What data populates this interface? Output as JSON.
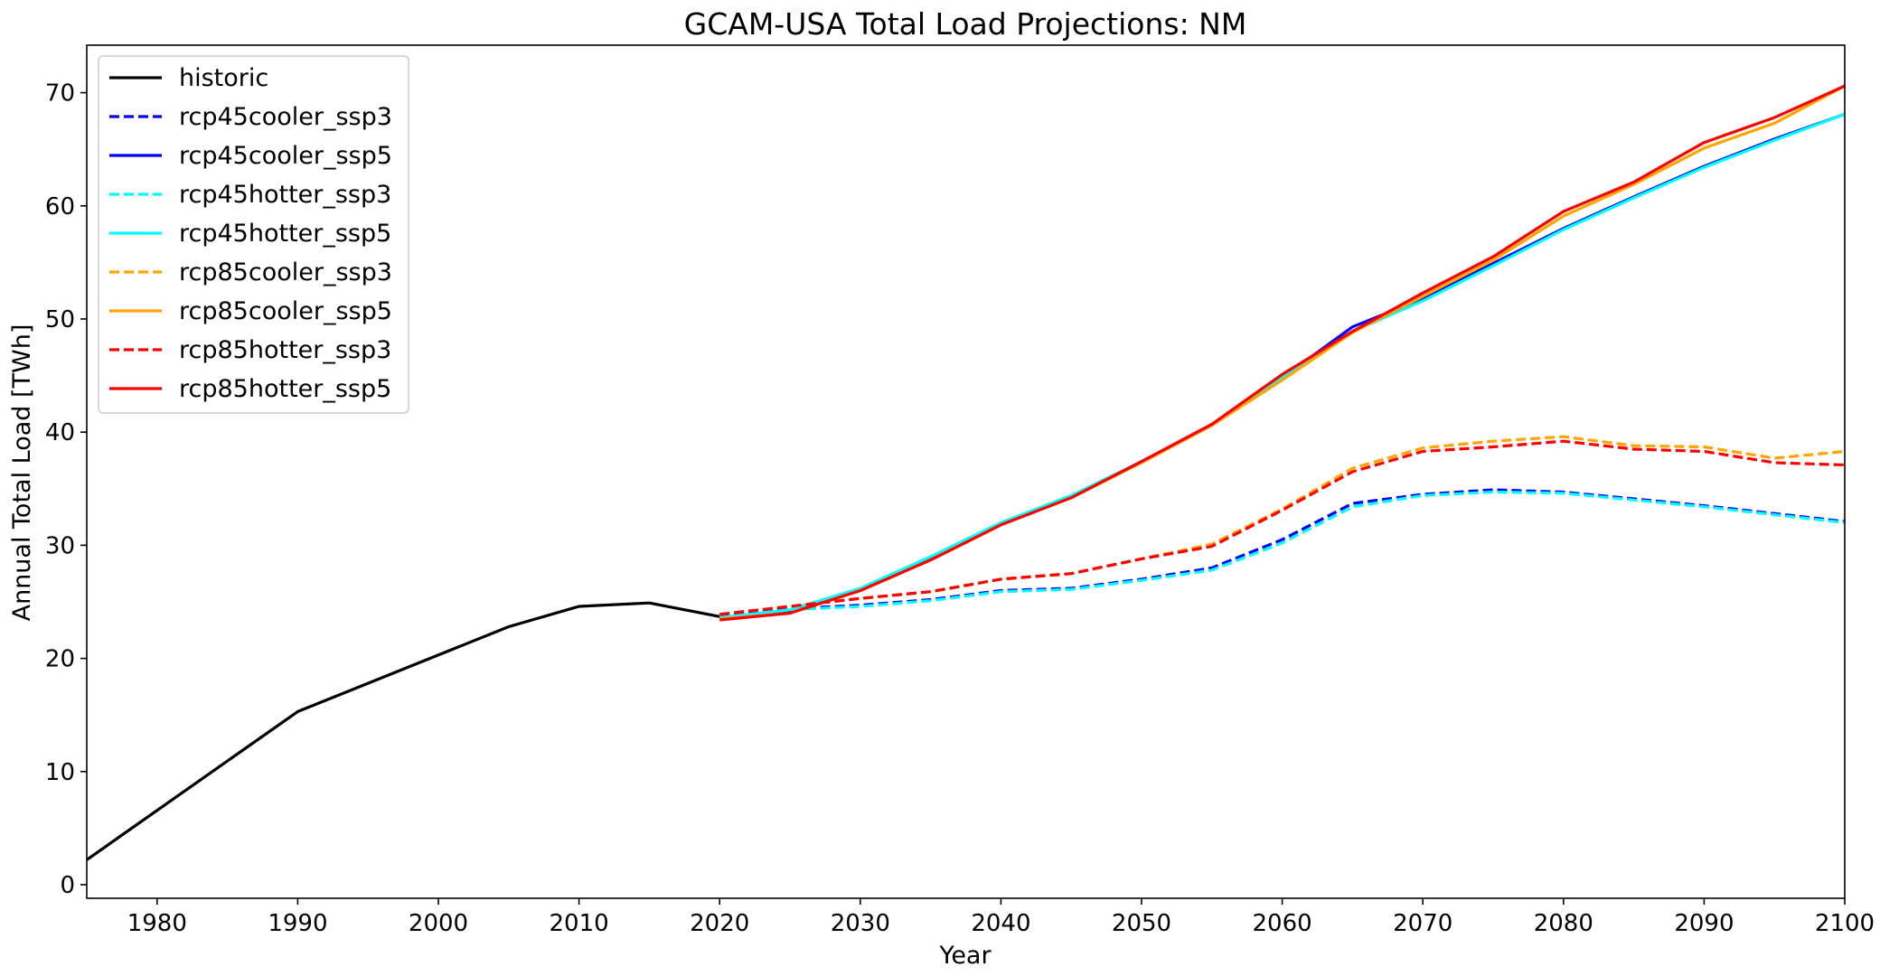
{
  "chart_data": {
    "type": "line",
    "title": "GCAM-USA Total Load Projections: NM",
    "xlabel": "Year",
    "ylabel": "Annual Total Load [TWh]",
    "xlim": [
      1975,
      2100
    ],
    "ylim": [
      -1.2,
      74.2
    ],
    "xticks": [
      1980,
      1990,
      2000,
      2010,
      2020,
      2030,
      2040,
      2050,
      2060,
      2070,
      2080,
      2090,
      2100
    ],
    "yticks": [
      0,
      10,
      20,
      30,
      40,
      50,
      60,
      70
    ],
    "grid": false,
    "legend_position": "upper-left",
    "series": [
      {
        "name": "historic",
        "color": "#000000",
        "dash": "solid",
        "x": [
          1975,
          1990,
          2005,
          2010,
          2015,
          2020
        ],
        "y": [
          2.2,
          15.3,
          22.8,
          24.6,
          24.9,
          23.7
        ]
      },
      {
        "name": "rcp45cooler_ssp3",
        "color": "#0000ff",
        "dash": "dashed",
        "x": [
          2020,
          2025,
          2030,
          2035,
          2040,
          2045,
          2050,
          2055,
          2060,
          2065,
          2070,
          2075,
          2080,
          2085,
          2090,
          2095,
          2100
        ],
        "y": [
          23.7,
          24.4,
          24.7,
          25.2,
          26.0,
          26.2,
          27.0,
          28.0,
          30.5,
          33.7,
          34.5,
          34.9,
          34.7,
          34.1,
          33.5,
          32.8,
          32.1
        ]
      },
      {
        "name": "rcp45cooler_ssp5",
        "color": "#0000ff",
        "dash": "solid",
        "x": [
          2020,
          2025,
          2030,
          2035,
          2040,
          2045,
          2050,
          2055,
          2060,
          2065,
          2070,
          2075,
          2080,
          2085,
          2090,
          2095,
          2100
        ],
        "y": [
          23.6,
          24.2,
          26.0,
          28.8,
          31.9,
          34.3,
          37.4,
          40.6,
          44.8,
          49.3,
          51.8,
          54.9,
          58.0,
          60.8,
          63.5,
          65.9,
          68.1
        ]
      },
      {
        "name": "rcp45hotter_ssp3",
        "color": "#00ffff",
        "dash": "dashed",
        "x": [
          2020,
          2025,
          2030,
          2035,
          2040,
          2045,
          2050,
          2055,
          2060,
          2065,
          2070,
          2075,
          2080,
          2085,
          2090,
          2095,
          2100
        ],
        "y": [
          23.6,
          24.3,
          24.6,
          25.1,
          25.9,
          26.1,
          26.9,
          27.8,
          30.2,
          33.4,
          34.4,
          34.7,
          34.6,
          34.0,
          33.4,
          32.7,
          32.0
        ]
      },
      {
        "name": "rcp45hotter_ssp5",
        "color": "#00ffff",
        "dash": "solid",
        "x": [
          2020,
          2025,
          2030,
          2035,
          2040,
          2045,
          2050,
          2055,
          2060,
          2065,
          2070,
          2075,
          2080,
          2085,
          2090,
          2095,
          2100
        ],
        "y": [
          23.6,
          24.3,
          26.2,
          29.0,
          32.0,
          34.4,
          37.4,
          40.6,
          44.8,
          48.9,
          51.6,
          54.7,
          57.9,
          60.7,
          63.4,
          65.8,
          68.1
        ]
      },
      {
        "name": "rcp85cooler_ssp3",
        "color": "#ffa500",
        "dash": "dashed",
        "x": [
          2020,
          2025,
          2030,
          2035,
          2040,
          2045,
          2050,
          2055,
          2060,
          2065,
          2070,
          2075,
          2080,
          2085,
          2090,
          2095,
          2100
        ],
        "y": [
          23.9,
          24.6,
          25.3,
          25.9,
          27.0,
          27.5,
          28.8,
          30.1,
          33.2,
          36.8,
          38.6,
          39.2,
          39.6,
          38.8,
          38.7,
          37.7,
          38.3
        ]
      },
      {
        "name": "rcp85cooler_ssp5",
        "color": "#ffa500",
        "dash": "solid",
        "x": [
          2020,
          2025,
          2030,
          2035,
          2040,
          2045,
          2050,
          2055,
          2060,
          2065,
          2070,
          2075,
          2080,
          2085,
          2090,
          2095,
          2100
        ],
        "y": [
          23.5,
          24.0,
          26.0,
          28.7,
          31.8,
          34.2,
          37.3,
          40.6,
          44.6,
          48.8,
          52.0,
          55.2,
          59.1,
          61.9,
          65.1,
          67.3,
          70.6
        ]
      },
      {
        "name": "rcp85hotter_ssp3",
        "color": "#ff0000",
        "dash": "dashed",
        "x": [
          2020,
          2025,
          2030,
          2035,
          2040,
          2045,
          2050,
          2055,
          2060,
          2065,
          2070,
          2075,
          2080,
          2085,
          2090,
          2095,
          2100
        ],
        "y": [
          23.9,
          24.6,
          25.3,
          25.9,
          27.0,
          27.5,
          28.8,
          29.9,
          33.1,
          36.5,
          38.3,
          38.7,
          39.2,
          38.5,
          38.3,
          37.3,
          37.1
        ]
      },
      {
        "name": "rcp85hotter_ssp5",
        "color": "#ff0000",
        "dash": "solid",
        "x": [
          2020,
          2025,
          2030,
          2035,
          2040,
          2045,
          2050,
          2055,
          2060,
          2065,
          2070,
          2075,
          2080,
          2085,
          2090,
          2095,
          2100
        ],
        "y": [
          23.4,
          24.0,
          26.0,
          28.7,
          31.8,
          34.2,
          37.4,
          40.7,
          45.1,
          48.9,
          52.3,
          55.5,
          59.5,
          62.1,
          65.6,
          67.8,
          70.6
        ]
      }
    ]
  }
}
